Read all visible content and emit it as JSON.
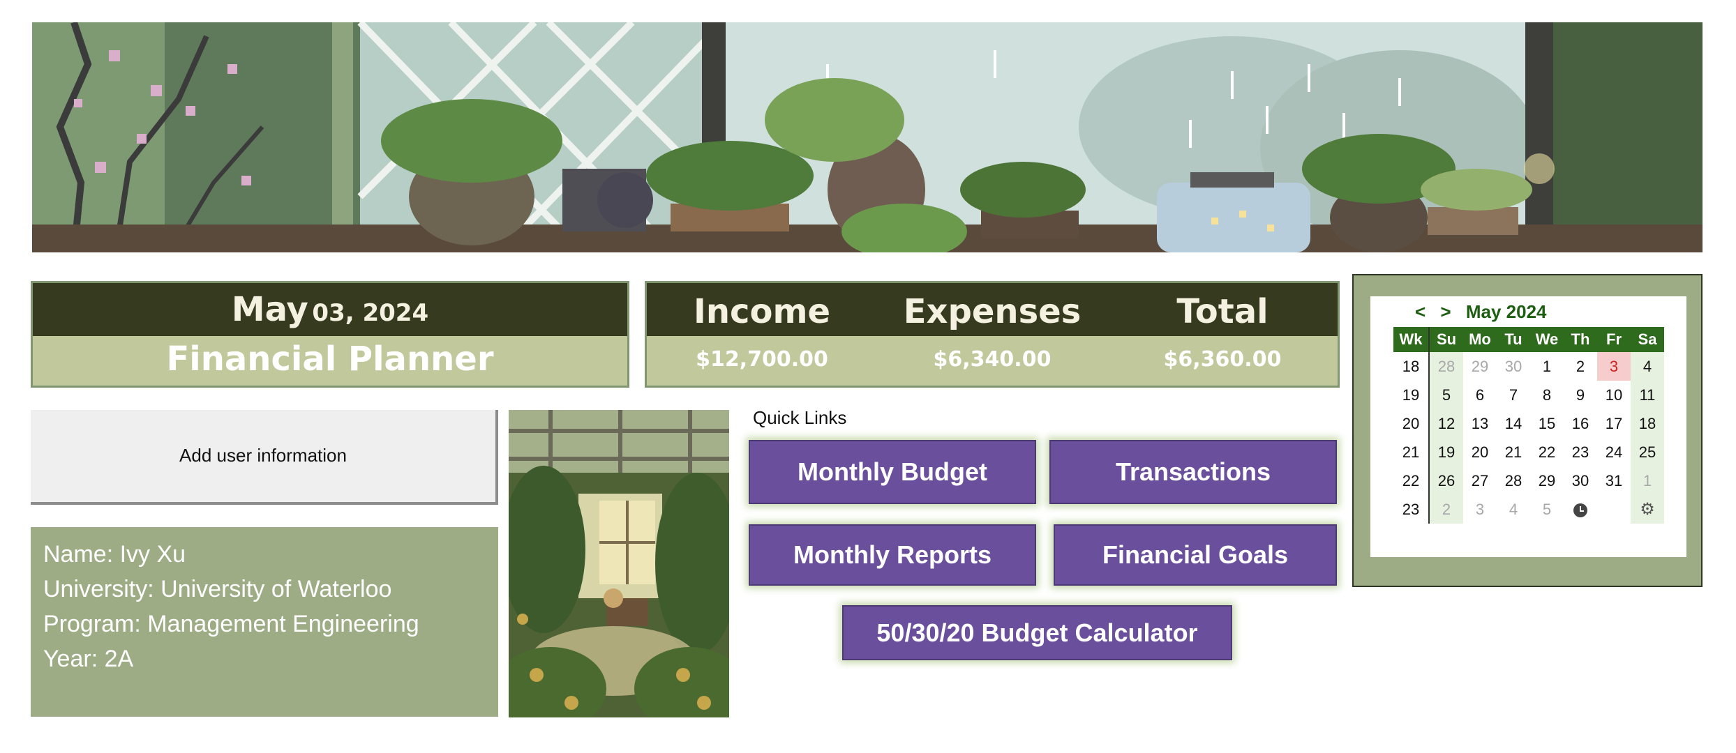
{
  "header": {
    "date_month": "May",
    "date_rest": "03, 2024",
    "title": "Financial Planner"
  },
  "totals": [
    {
      "label": "Income",
      "value": "$12,700.00"
    },
    {
      "label": "Expenses",
      "value": "$6,340.00"
    },
    {
      "label": "Total",
      "value": "$6,360.00"
    }
  ],
  "user": {
    "add_button": "Add user information",
    "lines": [
      "Name: Ivy Xu",
      "University: University of Waterloo",
      "Program: Management Engineering",
      "Year: 2A"
    ]
  },
  "quick_links": {
    "label": "Quick Links",
    "buttons": [
      "Monthly Budget",
      "Transactions",
      "Monthly Reports",
      "Financial Goals",
      "50/30/20 Budget Calculator"
    ]
  },
  "calendar": {
    "prev": "<",
    "next": ">",
    "month_label": "May 2024",
    "headers": [
      "Wk",
      "Su",
      "Mo",
      "Tu",
      "We",
      "Th",
      "Fr",
      "Sa"
    ],
    "weeks": [
      [
        "18",
        "28",
        "29",
        "30",
        "1",
        "2",
        "3",
        "4"
      ],
      [
        "19",
        "5",
        "6",
        "7",
        "8",
        "9",
        "10",
        "11"
      ],
      [
        "20",
        "12",
        "13",
        "14",
        "15",
        "16",
        "17",
        "18"
      ],
      [
        "21",
        "19",
        "20",
        "21",
        "22",
        "23",
        "24",
        "25"
      ],
      [
        "22",
        "26",
        "27",
        "28",
        "29",
        "30",
        "31",
        "1"
      ],
      [
        "23",
        "2",
        "3",
        "4",
        "5",
        "",
        "",
        ""
      ]
    ],
    "today": "3",
    "clock_icon": "clock-icon",
    "settings_icon": "gear-icon"
  },
  "colors": {
    "header_dark": "#363a1f",
    "header_light": "#c1c99c",
    "sage_panel": "#9dac85",
    "button_purple": "#6a4f9c",
    "calendar_green": "#2f6b1d"
  }
}
